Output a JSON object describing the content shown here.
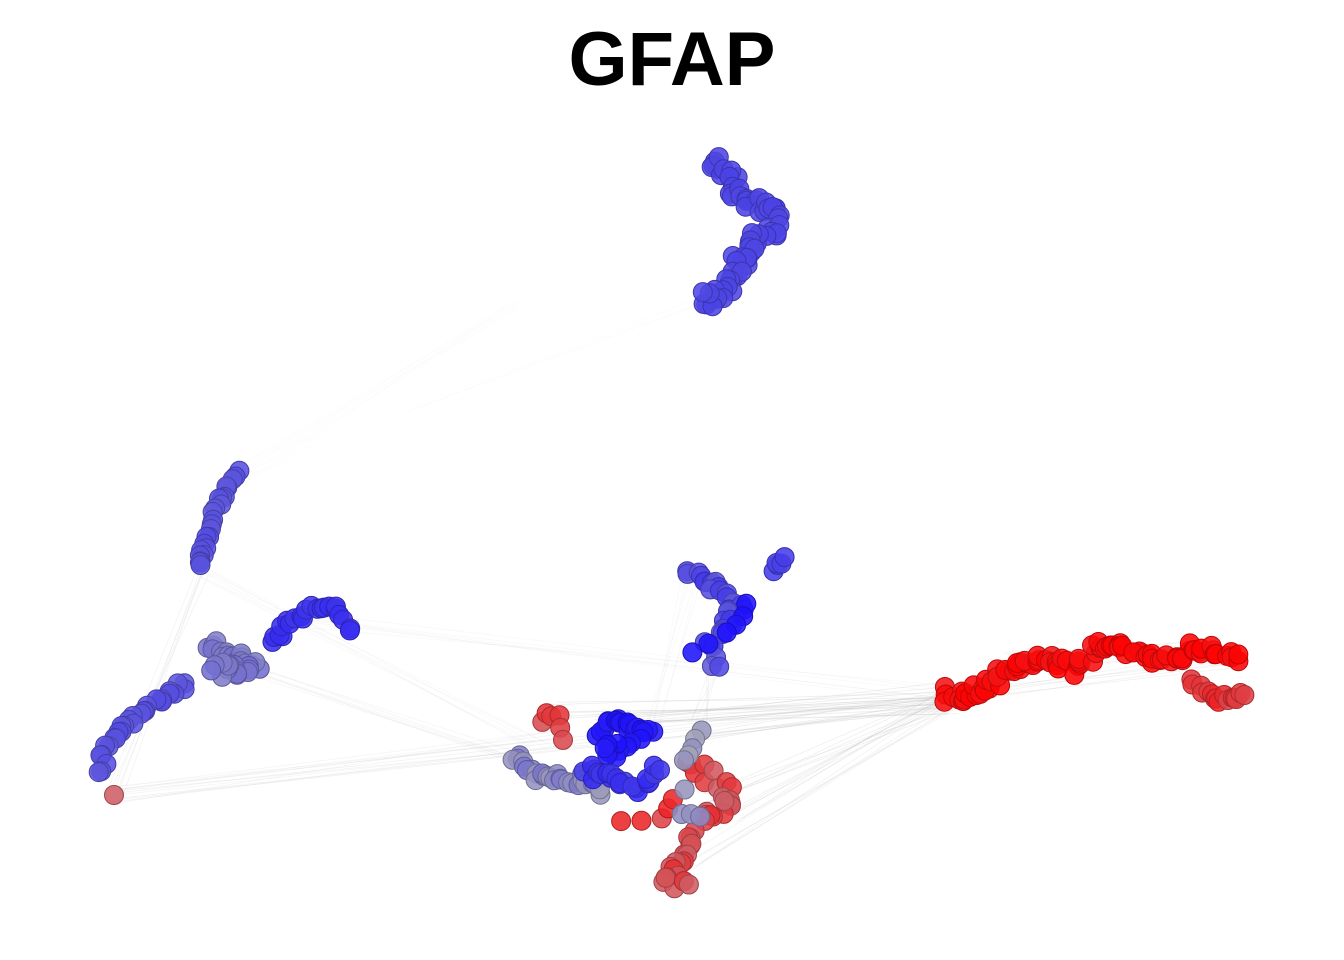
{
  "chart_data": {
    "type": "scatter",
    "title": "GFAP",
    "xlabel": "",
    "ylabel": "",
    "legend": "none",
    "grid": false,
    "axes": "hidden",
    "color_scale": {
      "low": "#1a0dff",
      "mid": "#a8a8b4",
      "high": "#ff0000",
      "domain": [
        0,
        1
      ]
    },
    "edge_color": "#bdbdbd",
    "clusters": [
      {
        "id": "top-cluster",
        "value": 0.18,
        "spread": 0.01,
        "path": [
          [
            713,
            163
          ],
          [
            725,
            168
          ],
          [
            732,
            190
          ],
          [
            745,
            200
          ],
          [
            768,
            205
          ],
          [
            780,
            215
          ],
          [
            772,
            232
          ],
          [
            756,
            238
          ],
          [
            745,
            248
          ],
          [
            742,
            262
          ],
          [
            734,
            278
          ],
          [
            722,
            292
          ],
          [
            710,
            302
          ],
          [
            702,
            298
          ]
        ],
        "count": 70,
        "jitter": 11
      },
      {
        "id": "left-arm-upper",
        "value": 0.22,
        "spread": 0.02,
        "path": [
          [
            238,
            472
          ],
          [
            225,
            492
          ],
          [
            215,
            512
          ],
          [
            210,
            532
          ],
          [
            204,
            552
          ],
          [
            198,
            566
          ]
        ],
        "count": 24,
        "jitter": 5
      },
      {
        "id": "left-arm-right",
        "value": 0.12,
        "spread": 0.02,
        "path": [
          [
            270,
            640
          ],
          [
            290,
            625
          ],
          [
            312,
            610
          ],
          [
            332,
            606
          ],
          [
            350,
            630
          ]
        ],
        "count": 22,
        "jitter": 6
      },
      {
        "id": "left-center-blob",
        "value": 0.34,
        "spread": 0.03,
        "path": [
          [
            210,
            640
          ],
          [
            225,
            655
          ],
          [
            240,
            662
          ],
          [
            255,
            668
          ],
          [
            230,
            670
          ],
          [
            212,
            665
          ]
        ],
        "count": 36,
        "jitter": 9
      },
      {
        "id": "left-arm-lower",
        "value": 0.22,
        "spread": 0.02,
        "path": [
          [
            186,
            684
          ],
          [
            166,
            698
          ],
          [
            145,
            710
          ],
          [
            125,
            726
          ],
          [
            108,
            745
          ],
          [
            98,
            770
          ]
        ],
        "count": 30,
        "jitter": 6
      },
      {
        "id": "mid-upper-cluster",
        "value": 0.2,
        "spread": 0.06,
        "path": [
          [
            692,
            573
          ],
          [
            707,
            582
          ],
          [
            722,
            595
          ],
          [
            740,
            608
          ],
          [
            730,
            625
          ],
          [
            712,
            638
          ],
          [
            714,
            665
          ]
        ],
        "count": 32,
        "jitter": 9
      },
      {
        "id": "mid-upper-bright",
        "value": 0.02,
        "spread": 0.01,
        "path": [
          [
            745,
            607
          ],
          [
            737,
            628
          ],
          [
            692,
            654
          ]
        ],
        "count": 6,
        "jitter": 4
      },
      {
        "id": "mid-upper-tip",
        "value": 0.16,
        "spread": 0.01,
        "path": [
          [
            773,
            570
          ],
          [
            785,
            558
          ]
        ],
        "count": 5,
        "jitter": 3
      },
      {
        "id": "center-bright",
        "value": 0.03,
        "spread": 0.02,
        "path": [
          [
            598,
            728
          ],
          [
            615,
            720
          ],
          [
            630,
            730
          ],
          [
            652,
            728
          ],
          [
            618,
            752
          ],
          [
            605,
            748
          ]
        ],
        "count": 30,
        "jitter": 8
      },
      {
        "id": "center-mixed-left",
        "value": 0.4,
        "spread": 0.06,
        "path": [
          [
            515,
            758
          ],
          [
            530,
            772
          ],
          [
            552,
            778
          ],
          [
            575,
            780
          ],
          [
            600,
            790
          ]
        ],
        "count": 28,
        "jitter": 8
      },
      {
        "id": "center-blue-lower",
        "value": 0.12,
        "spread": 0.04,
        "path": [
          [
            585,
            770
          ],
          [
            610,
            775
          ],
          [
            635,
            785
          ],
          [
            660,
            770
          ]
        ],
        "count": 22,
        "jitter": 8
      },
      {
        "id": "center-red-left",
        "value": 0.82,
        "spread": 0.05,
        "path": [
          [
            542,
            718
          ],
          [
            556,
            714
          ],
          [
            563,
            740
          ]
        ],
        "count": 6,
        "jitter": 5
      },
      {
        "id": "center-red-lower",
        "value": 0.78,
        "spread": 0.08,
        "path": [
          [
            690,
            770
          ],
          [
            712,
            775
          ],
          [
            735,
            795
          ],
          [
            720,
            810
          ],
          [
            700,
            830
          ],
          [
            690,
            850
          ],
          [
            678,
            868
          ],
          [
            665,
            880
          ],
          [
            690,
            884
          ]
        ],
        "count": 42,
        "jitter": 11
      },
      {
        "id": "center-red-small",
        "value": 0.85,
        "spread": 0.05,
        "path": [
          [
            620,
            820
          ],
          [
            662,
            818
          ],
          [
            672,
            800
          ]
        ],
        "count": 5,
        "jitter": 4
      },
      {
        "id": "center-grey-column",
        "value": 0.45,
        "spread": 0.05,
        "path": [
          [
            700,
            728
          ],
          [
            692,
            748
          ],
          [
            684,
            762
          ],
          [
            680,
            812
          ],
          [
            700,
            818
          ]
        ],
        "count": 9,
        "jitter": 4
      },
      {
        "id": "right-arm",
        "value": 0.97,
        "spread": 0.03,
        "path": [
          [
            945,
            695
          ],
          [
            965,
            700
          ],
          [
            985,
            688
          ],
          [
            1005,
            672
          ],
          [
            1025,
            660
          ],
          [
            1050,
            660
          ],
          [
            1075,
            668
          ],
          [
            1095,
            650
          ],
          [
            1115,
            645
          ],
          [
            1140,
            652
          ],
          [
            1165,
            660
          ],
          [
            1190,
            652
          ],
          [
            1215,
            652
          ],
          [
            1240,
            660
          ]
        ],
        "count": 95,
        "jitter": 9
      },
      {
        "id": "right-arm-lower-tail",
        "value": 0.85,
        "spread": 0.05,
        "path": [
          [
            1190,
            682
          ],
          [
            1208,
            698
          ],
          [
            1228,
            700
          ],
          [
            1245,
            695
          ]
        ],
        "count": 16,
        "jitter": 6
      },
      {
        "id": "outlier-red",
        "value": 0.72,
        "spread": 0.01,
        "path": [
          [
            114,
            795
          ]
        ],
        "count": 1,
        "jitter": 0
      }
    ],
    "edges": [
      {
        "from": [
          114,
          795
        ],
        "to": [
          945,
          700
        ],
        "weight": 0.55
      },
      {
        "from": [
          114,
          795
        ],
        "to": [
          200,
          568
        ],
        "weight": 0.5
      },
      {
        "from": [
          114,
          795
        ],
        "to": [
          560,
          740
        ],
        "weight": 0.45
      },
      {
        "from": [
          200,
          568
        ],
        "to": [
          540,
          745
        ],
        "weight": 0.3
      },
      {
        "from": [
          230,
          660
        ],
        "to": [
          540,
          760
        ],
        "weight": 0.45
      },
      {
        "from": [
          300,
          620
        ],
        "to": [
          945,
          695
        ],
        "weight": 0.3
      },
      {
        "from": [
          560,
          712
        ],
        "to": [
          950,
          700
        ],
        "weight": 0.8
      },
      {
        "from": [
          600,
          720
        ],
        "to": [
          945,
          690
        ],
        "weight": 0.8
      },
      {
        "from": [
          640,
          725
        ],
        "to": [
          950,
          705
        ],
        "weight": 0.75
      },
      {
        "from": [
          700,
          730
        ],
        "to": [
          945,
          700
        ],
        "weight": 0.75
      },
      {
        "from": [
          700,
          800
        ],
        "to": [
          950,
          700
        ],
        "weight": 0.7
      },
      {
        "from": [
          735,
          820
        ],
        "to": [
          945,
          695
        ],
        "weight": 0.7
      },
      {
        "from": [
          690,
          860
        ],
        "to": [
          950,
          705
        ],
        "weight": 0.55
      },
      {
        "from": [
          980,
          690
        ],
        "to": [
          1240,
          660
        ],
        "weight": 0.6
      },
      {
        "from": [
          1010,
          660
        ],
        "to": [
          1200,
          650
        ],
        "weight": 0.5
      },
      {
        "from": [
          715,
          670
        ],
        "to": [
          700,
          728
        ],
        "weight": 0.5
      },
      {
        "from": [
          692,
          578
        ],
        "to": [
          655,
          735
        ],
        "weight": 0.3
      },
      {
        "from": [
          240,
          475
        ],
        "to": [
          520,
          300
        ],
        "weight": 0.12
      },
      {
        "from": [
          240,
          475
        ],
        "to": [
          700,
          300
        ],
        "weight": 0.08
      }
    ]
  }
}
